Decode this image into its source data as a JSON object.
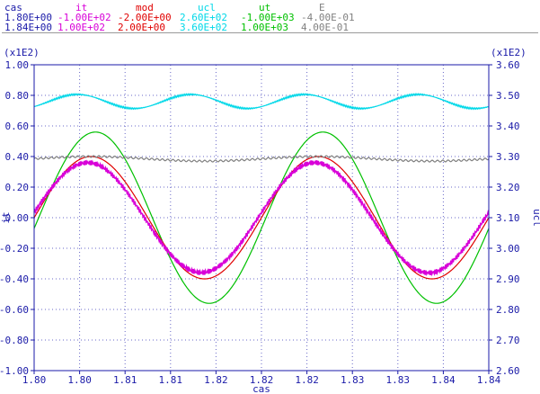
{
  "chart_data": {
    "type": "line",
    "xlabel": "cas",
    "ylabel_left": "it",
    "ylabel_right": "ucl",
    "scale_left": "(x1E2)",
    "scale_right": "(x1E2)",
    "x_ticks": [
      "1.80",
      "1.80",
      "1.81",
      "1.81",
      "1.82",
      "1.82",
      "1.82",
      "1.83",
      "1.83",
      "1.84",
      "1.84"
    ],
    "y_left_ticks": [
      "1.00",
      "0.80",
      "0.60",
      "0.40",
      "0.20",
      "0.00",
      "-0.20",
      "-0.40",
      "-0.60",
      "-0.80",
      "-1.00"
    ],
    "y_right_ticks": [
      "3.60",
      "3.50",
      "3.40",
      "3.30",
      "3.20",
      "3.10",
      "3.00",
      "2.90",
      "2.80",
      "2.70",
      "2.60"
    ],
    "ylim_left": [
      -100,
      100
    ],
    "ylim_right": [
      260,
      360
    ],
    "xlim": [
      1.8,
      1.84
    ],
    "grid": true,
    "legend": [
      {
        "name": "cas",
        "min": "1.80E+00",
        "max": "1.84E+00",
        "color": "#1a1aa8"
      },
      {
        "name": "it",
        "min": "-1.00E+02",
        "max": "1.00E+02",
        "color": "#d800d8"
      },
      {
        "name": "mod",
        "min": "-2.00E+00",
        "max": "2.00E+00",
        "color": "#e00000"
      },
      {
        "name": "ucl",
        "min": "2.60E+02",
        "max": "3.60E+02",
        "color": "#00d8e8"
      },
      {
        "name": "ut",
        "min": "-1.00E+03",
        "max": "1.00E+03",
        "color": "#00c000"
      },
      {
        "name": "E",
        "min": "-4.00E-01",
        "max": "4.00E-01",
        "color": "#808080"
      }
    ],
    "series": [
      {
        "name": "ut",
        "color": "#00c000",
        "axis": "left",
        "amplitude": 56,
        "offset": 0,
        "period": 0.02,
        "phase": 0.0004,
        "values_note": "sinusoid y(x)"
      },
      {
        "name": "mod",
        "color": "#e00000",
        "axis": "left",
        "amplitude": 40,
        "offset": 0,
        "period": 0.02,
        "phase": 0.0,
        "values_note": "sinusoid y(x)"
      },
      {
        "name": "it",
        "color": "#d800d8",
        "axis": "left",
        "amplitude": 36,
        "offset": 0,
        "period": 0.02,
        "phase": -0.0003,
        "values_note": "sinusoid y(x)"
      },
      {
        "name": "E",
        "color": "#808080",
        "axis": "left",
        "amplitude": 1.5,
        "offset": 38.5,
        "period": 0.02,
        "phase": 0,
        "values_note": "near-constant"
      },
      {
        "name": "ucl",
        "color": "#00d8e8",
        "axis": "right",
        "amplitude": 2.3,
        "offset": 348,
        "period": 0.01,
        "phase": 0.0013,
        "values_note": "sinusoid y(x)"
      }
    ]
  }
}
